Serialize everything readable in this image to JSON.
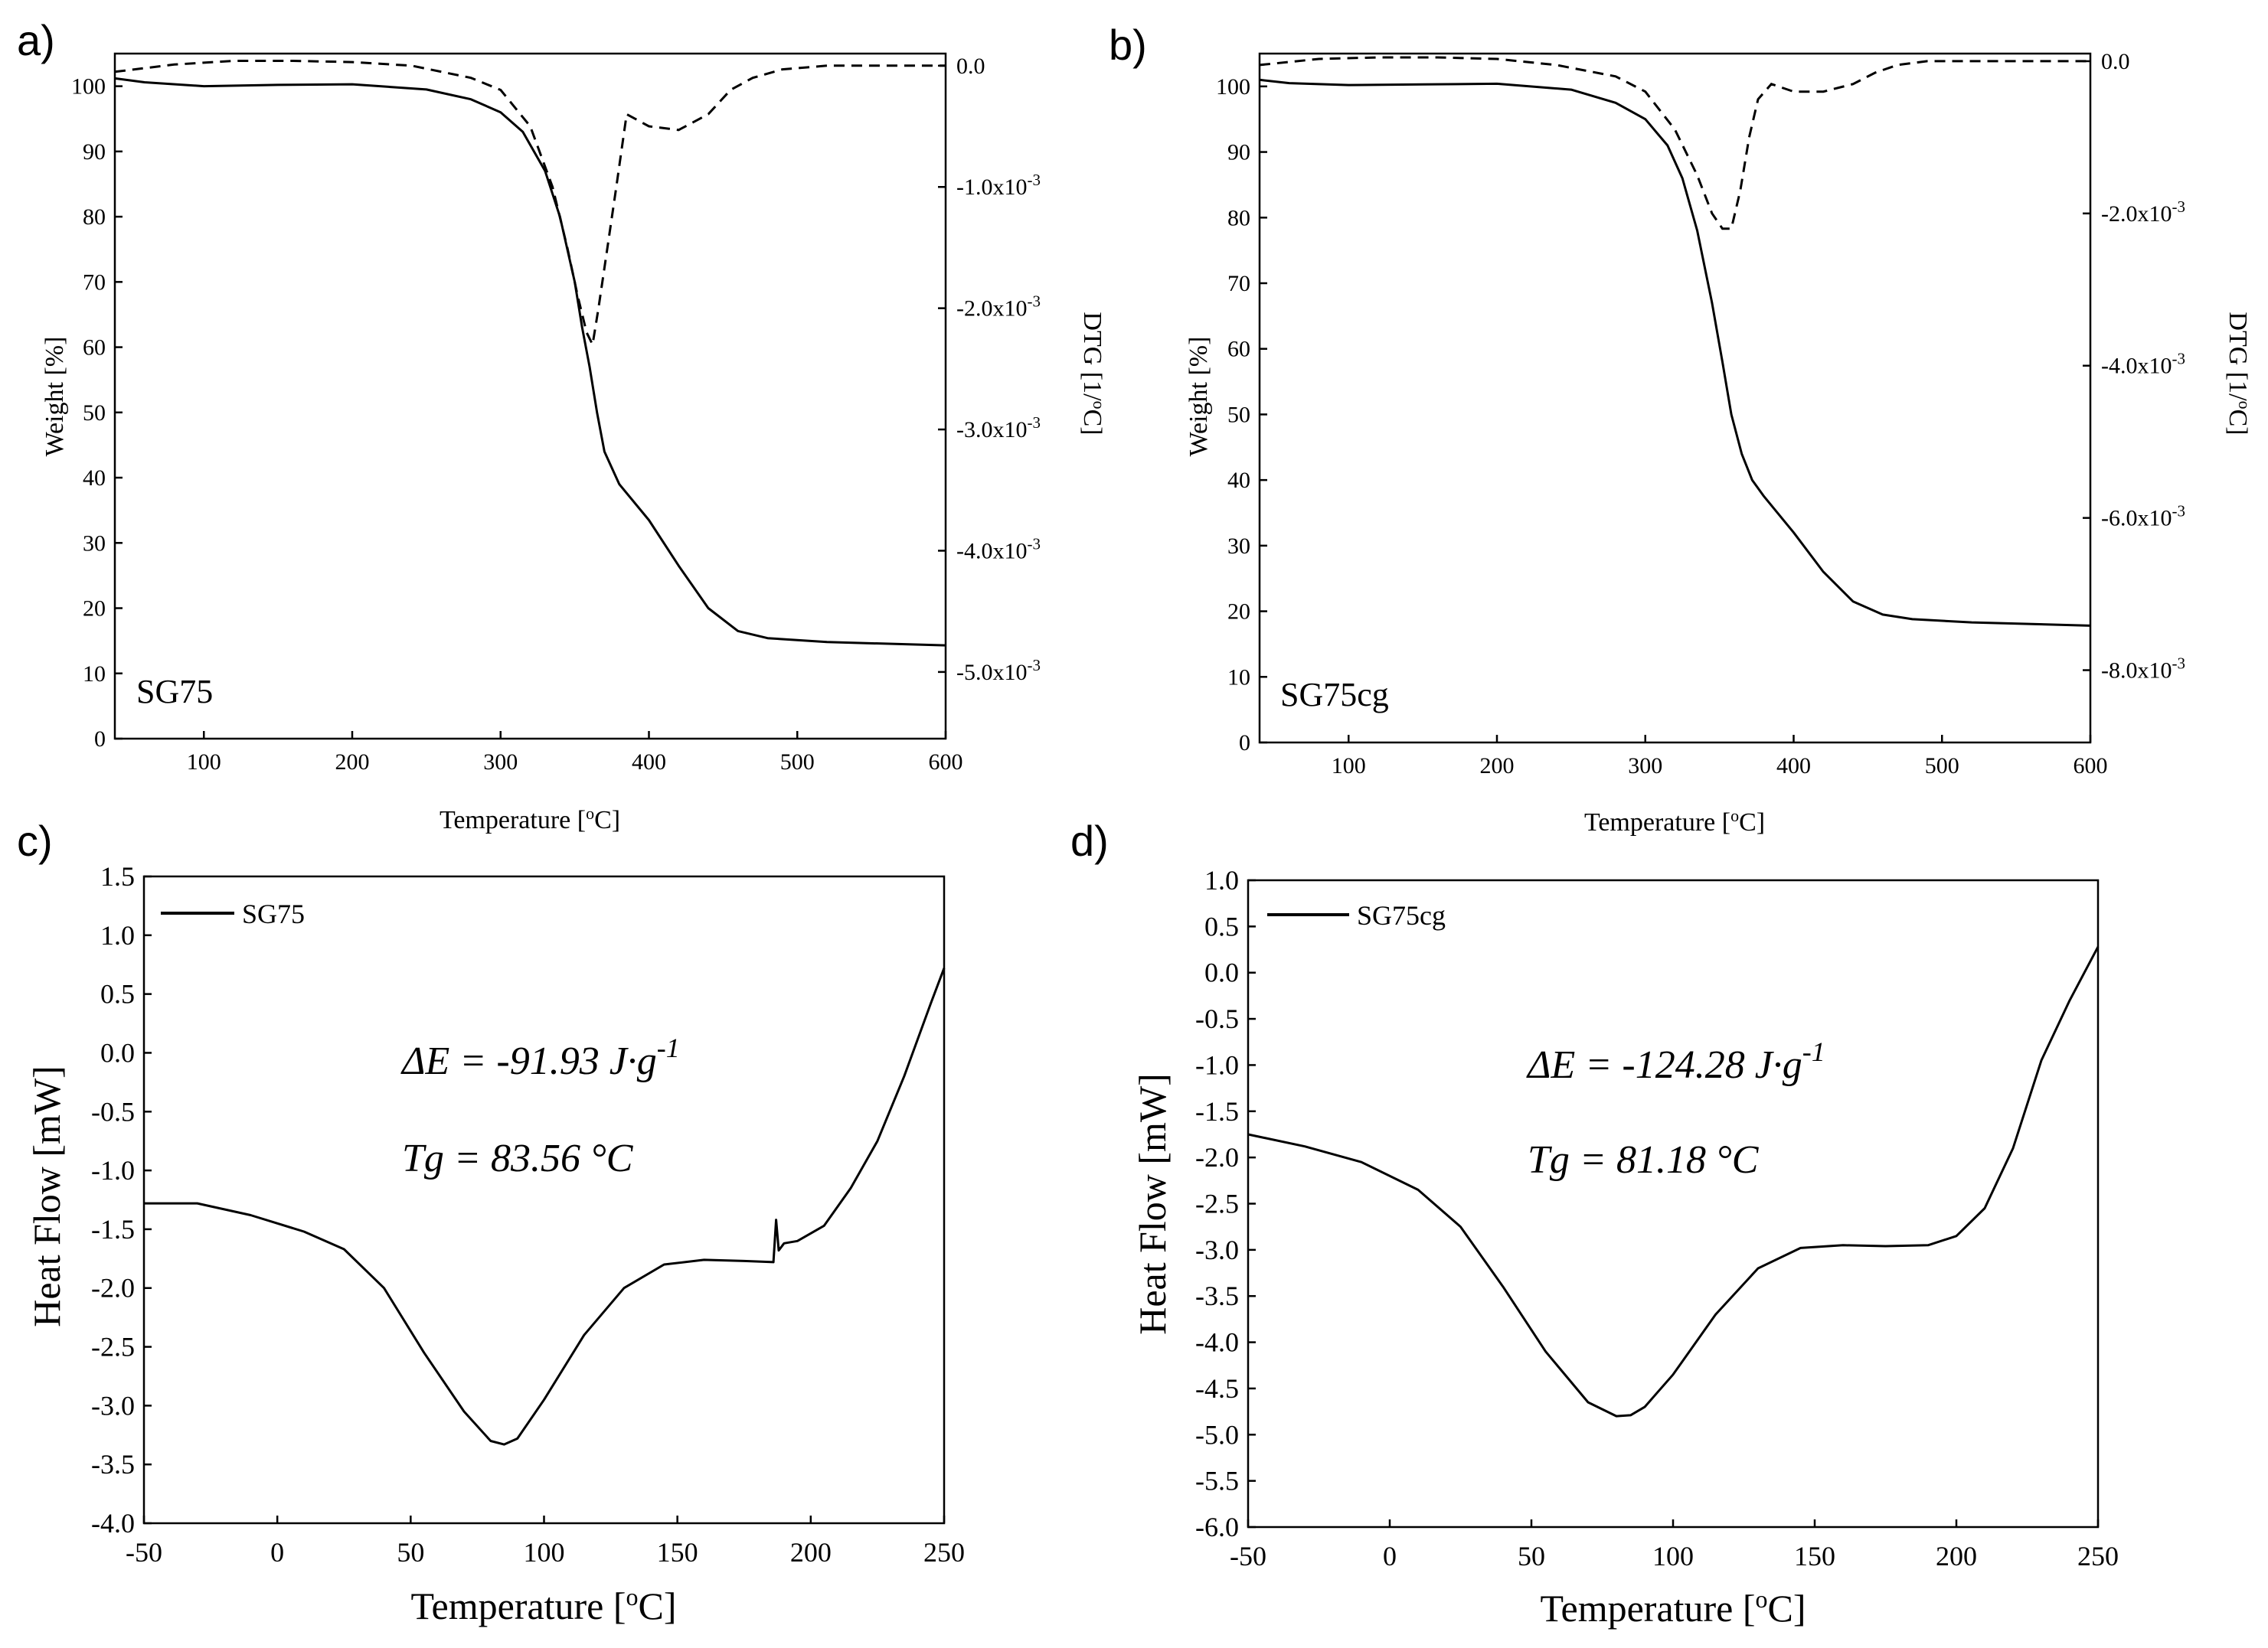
{
  "chart_data": [
    {
      "panel": "a)",
      "type": "line",
      "sample_label": "SG75",
      "xlabel": "Temperature [",
      "xlabel_unit_sup": "o",
      "xlabel_unit_tail": "C]",
      "ylabel": "Weight [%]",
      "y2label": "DTG [1/",
      "y2label_sup": "o",
      "y2label_tail": "C]",
      "xlim": [
        40,
        600
      ],
      "ylim": [
        0,
        105
      ],
      "y2lim": [
        -0.00555,
        0.0001
      ],
      "xticks": [
        100,
        200,
        300,
        400,
        500,
        600
      ],
      "yticks": [
        0,
        10,
        20,
        30,
        40,
        50,
        60,
        70,
        80,
        90,
        100
      ],
      "y2ticks": [
        {
          "value": 0.0,
          "label": "0.0"
        },
        {
          "value": -0.001,
          "label": "-1.0x10",
          "exp": "-3"
        },
        {
          "value": -0.002,
          "label": "-2.0x10",
          "exp": "-3"
        },
        {
          "value": -0.003,
          "label": "-3.0x10",
          "exp": "-3"
        },
        {
          "value": -0.004,
          "label": "-4.0x10",
          "exp": "-3"
        },
        {
          "value": -0.005,
          "label": "-5.0x10",
          "exp": "-3"
        }
      ],
      "series": [
        {
          "name": "Weight",
          "axis": "left",
          "style": "solid",
          "x": [
            40,
            60,
            100,
            150,
            200,
            250,
            280,
            300,
            315,
            330,
            340,
            350,
            355,
            360,
            365,
            370,
            380,
            400,
            420,
            440,
            460,
            480,
            520,
            600
          ],
          "y": [
            101.2,
            100.6,
            100.0,
            100.2,
            100.3,
            99.5,
            98.0,
            96.0,
            93.0,
            87.0,
            80.0,
            70.0,
            63.0,
            57.0,
            50.0,
            44.0,
            39.0,
            33.5,
            26.5,
            20.0,
            16.5,
            15.4,
            14.8,
            14.3
          ]
        },
        {
          "name": "DTG",
          "axis": "right",
          "style": "dashed",
          "x": [
            40,
            80,
            120,
            160,
            200,
            240,
            280,
            300,
            320,
            335,
            345,
            352,
            358,
            362,
            366,
            372,
            378,
            385,
            400,
            420,
            440,
            455,
            470,
            490,
            520,
            560,
            600
          ],
          "y": [
            -5e-05,
            1e-05,
            4e-05,
            4e-05,
            3e-05,
            0.0,
            -0.0001,
            -0.0002,
            -0.0005,
            -0.001,
            -0.0015,
            -0.0019,
            -0.0022,
            -0.0023,
            -0.002,
            -0.0015,
            -0.001,
            -0.0004,
            -0.0005,
            -0.00053,
            -0.0004,
            -0.0002,
            -0.0001,
            -3e-05,
            0.0,
            0.0,
            0.0
          ]
        }
      ]
    },
    {
      "panel": "b)",
      "type": "line",
      "sample_label": "SG75cg",
      "xlabel": "Temperature [",
      "xlabel_unit_sup": "o",
      "xlabel_unit_tail": "C]",
      "ylabel": "Weight [%]",
      "y2label": "DTG [1/",
      "y2label_sup": "o",
      "y2label_tail": "C]",
      "xlim": [
        40,
        600
      ],
      "ylim": [
        0,
        105
      ],
      "y2lim": [
        -0.00895,
        0.0001
      ],
      "xticks": [
        100,
        200,
        300,
        400,
        500,
        600
      ],
      "yticks": [
        0,
        10,
        20,
        30,
        40,
        50,
        60,
        70,
        80,
        90,
        100
      ],
      "y2ticks": [
        {
          "value": 0.0,
          "label": "0.0"
        },
        {
          "value": -0.002,
          "label": "-2.0x10",
          "exp": "-3"
        },
        {
          "value": -0.004,
          "label": "-4.0x10",
          "exp": "-3"
        },
        {
          "value": -0.006,
          "label": "-6.0x10",
          "exp": "-3"
        },
        {
          "value": -0.008,
          "label": "-8.0x10",
          "exp": "-3"
        }
      ],
      "series": [
        {
          "name": "Weight",
          "axis": "left",
          "style": "solid",
          "x": [
            40,
            60,
            100,
            150,
            200,
            250,
            280,
            300,
            315,
            325,
            335,
            345,
            352,
            358,
            365,
            372,
            380,
            400,
            420,
            440,
            460,
            480,
            520,
            600
          ],
          "y": [
            101.0,
            100.5,
            100.2,
            100.3,
            100.4,
            99.5,
            97.5,
            95.0,
            91.0,
            86.0,
            78.0,
            67.0,
            58.0,
            50.0,
            44.0,
            40.0,
            37.5,
            32.0,
            26.0,
            21.5,
            19.5,
            18.8,
            18.3,
            17.8
          ]
        },
        {
          "name": "DTG",
          "axis": "right",
          "style": "dashed",
          "x": [
            40,
            80,
            120,
            160,
            200,
            240,
            280,
            300,
            320,
            335,
            345,
            352,
            358,
            364,
            370,
            376,
            385,
            400,
            420,
            440,
            455,
            470,
            490,
            520,
            560,
            600
          ],
          "y": [
            -5e-05,
            3e-05,
            5e-05,
            5e-05,
            3e-05,
            -5e-05,
            -0.0002,
            -0.0004,
            -0.0009,
            -0.0015,
            -0.002,
            -0.0022,
            -0.0022,
            -0.0017,
            -0.001,
            -0.0005,
            -0.0003,
            -0.0004,
            -0.0004,
            -0.0003,
            -0.00015,
            -5e-05,
            0.0,
            0.0,
            0.0,
            0.0
          ]
        }
      ]
    },
    {
      "panel": "c)",
      "type": "line",
      "legend": "SG75",
      "annotation_dE": "ΔE = -91.93 J·g",
      "annotation_dE_exp": "-1",
      "annotation_tg": "Tg = 83.56 °C",
      "xlabel": "Temperature [",
      "xlabel_unit_sup": "o",
      "xlabel_unit_tail": "C]",
      "ylabel": "Heat Flow [mW]",
      "xlim": [
        -50,
        250
      ],
      "ylim": [
        -4.0,
        1.5
      ],
      "xticks": [
        -50,
        0,
        50,
        100,
        150,
        200,
        250
      ],
      "ytick_labels": [
        "1.5",
        "1.0",
        "0.5",
        "0.0",
        "-0.5",
        "-1.0",
        "-1.5",
        "-2.0",
        "-2.5",
        "-3.0",
        "-3.5",
        "-4.0"
      ],
      "yticks": [
        1.5,
        1.0,
        0.5,
        0.0,
        -0.5,
        -1.0,
        -1.5,
        -2.0,
        -2.5,
        -3.0,
        -3.5,
        -4.0
      ],
      "series": [
        {
          "name": "SG75",
          "style": "solid",
          "x": [
            -50,
            -30,
            -10,
            10,
            25,
            40,
            55,
            70,
            80,
            85,
            90,
            100,
            115,
            130,
            145,
            160,
            175,
            186,
            187,
            188,
            190,
            195,
            205,
            215,
            225,
            235,
            245,
            250
          ],
          "y": [
            -1.28,
            -1.28,
            -1.38,
            -1.52,
            -1.67,
            -2.0,
            -2.55,
            -3.05,
            -3.3,
            -3.33,
            -3.28,
            -2.95,
            -2.4,
            -2.0,
            -1.8,
            -1.76,
            -1.77,
            -1.78,
            -1.42,
            -1.68,
            -1.62,
            -1.6,
            -1.47,
            -1.15,
            -0.75,
            -0.2,
            0.42,
            0.72
          ]
        }
      ]
    },
    {
      "panel": "d)",
      "type": "line",
      "legend": "SG75cg",
      "annotation_dE": "ΔE = -124.28 J·g",
      "annotation_dE_exp": "-1",
      "annotation_tg": "Tg = 81.18 °C",
      "xlabel": "Temperature [",
      "xlabel_unit_sup": "o",
      "xlabel_unit_tail": "C]",
      "ylabel": "Heat Flow [mW]",
      "xlim": [
        -50,
        250
      ],
      "ylim": [
        -6.0,
        1.0
      ],
      "xticks": [
        -50,
        0,
        50,
        100,
        150,
        200,
        250
      ],
      "ytick_labels": [
        "1.0",
        "0.5",
        "0.0",
        "-0.5",
        "-1.0",
        "-1.5",
        "-2.0",
        "-2.5",
        "-3.0",
        "-3.5",
        "-4.0",
        "-4.5",
        "-5.0",
        "-5.5",
        "-6.0"
      ],
      "yticks": [
        1.0,
        0.5,
        0.0,
        -0.5,
        -1.0,
        -1.5,
        -2.0,
        -2.5,
        -3.0,
        -3.5,
        -4.0,
        -4.5,
        -5.0,
        -5.5,
        -6.0
      ],
      "series": [
        {
          "name": "SG75cg",
          "style": "solid",
          "x": [
            -50,
            -30,
            -10,
            10,
            25,
            40,
            55,
            70,
            80,
            85,
            90,
            100,
            115,
            130,
            145,
            160,
            175,
            190,
            200,
            210,
            220,
            230,
            240,
            250
          ],
          "y": [
            -1.75,
            -1.88,
            -2.05,
            -2.35,
            -2.75,
            -3.4,
            -4.1,
            -4.65,
            -4.8,
            -4.79,
            -4.7,
            -4.35,
            -3.7,
            -3.2,
            -2.98,
            -2.95,
            -2.96,
            -2.95,
            -2.85,
            -2.55,
            -1.9,
            -0.95,
            -0.3,
            0.28
          ]
        }
      ]
    }
  ]
}
